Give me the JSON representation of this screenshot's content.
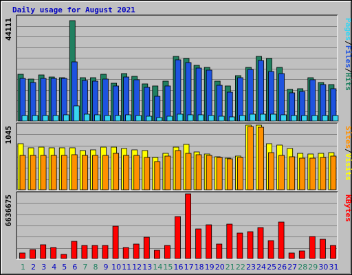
{
  "chart_data": {
    "title": "Daily usage for August 2021",
    "type": "bar",
    "days": [
      1,
      2,
      3,
      4,
      5,
      6,
      7,
      8,
      9,
      10,
      11,
      12,
      13,
      14,
      15,
      16,
      17,
      18,
      19,
      20,
      21,
      22,
      23,
      24,
      25,
      26,
      27,
      28,
      29,
      30,
      31
    ],
    "weekend_days": [
      1,
      7,
      8,
      14,
      15,
      21,
      22,
      28,
      29
    ],
    "panels": [
      {
        "id": "top",
        "ymax_label": "44111",
        "ymax": 44111,
        "series": [
          {
            "name": "Hits",
            "color": "#208060",
            "values": [
              19800,
              17900,
              19500,
              18700,
              18300,
              42700,
              18400,
              18300,
              19800,
              16200,
              20200,
              18900,
              15800,
              14800,
              16800,
              27500,
              26600,
              23800,
              22900,
              16900,
              14800,
              19400,
              22900,
              27400,
              26500,
              22700,
              13300,
              13600,
              18300,
              16300,
              15600
            ]
          },
          {
            "name": "Files",
            "color": "#1e53e0",
            "values": [
              18100,
              16400,
              18200,
              18100,
              18100,
              25000,
              17300,
              17000,
              17900,
              14900,
              18800,
              17500,
              14300,
              10500,
              15000,
              26000,
              24800,
              22600,
              21500,
              15100,
              12200,
              18400,
              21900,
              25600,
              20900,
              20300,
              11900,
              12700,
              17600,
              15500,
              13700
            ]
          },
          {
            "name": "Pages",
            "color": "#38d4f0",
            "values": [
              2400,
              2400,
              2300,
              2200,
              2600,
              6300,
              2900,
              2700,
              2300,
              2300,
              2600,
              2200,
              1900,
              1600,
              2100,
              3000,
              2700,
              2700,
              2200,
              1900,
              1700,
              2200,
              3000,
              2900,
              2800,
              2500,
              2200,
              2400,
              2300,
              2200,
              2200
            ]
          }
        ],
        "legend": [
          "Pages",
          "/",
          "Files",
          "/",
          "Hits"
        ]
      },
      {
        "id": "middle",
        "ymax_label": "1045",
        "ymax": 1045,
        "series": [
          {
            "name": "Visits",
            "color": "#ffff00",
            "values": [
              740,
              675,
              690,
              680,
              680,
              680,
              630,
              640,
              690,
              690,
              665,
              640,
              630,
              525,
              590,
              690,
              735,
              615,
              575,
              535,
              515,
              550,
              1045,
              1045,
              745,
              720,
              665,
              590,
              575,
              590,
              600
            ]
          },
          {
            "name": "Sites",
            "color": "#ff9000",
            "values": [
              555,
              560,
              555,
              555,
              560,
              570,
              555,
              560,
              560,
              590,
              555,
              555,
              520,
              460,
              545,
              630,
              590,
              565,
              555,
              520,
              505,
              525,
              1025,
              1010,
              595,
              555,
              535,
              510,
              515,
              520,
              545
            ]
          }
        ],
        "legend": [
          "Sites",
          "/",
          "Visits"
        ]
      },
      {
        "id": "bottom",
        "ymax_label": "6636675",
        "ymax": 6636675,
        "series": [
          {
            "name": "KBytes",
            "color": "#ff0000",
            "values": [
              600000,
              900000,
              1430000,
              1130000,
              420000,
              1760000,
              1360000,
              1360000,
              1320000,
              3300000,
              1110000,
              1510000,
              2170000,
              870000,
              1340000,
              4290000,
              6636675,
              3050000,
              3450000,
              1470000,
              3500000,
              2630000,
              2720000,
              3170000,
              1860000,
              3710000,
              600000,
              790000,
              2290000,
              2000000,
              1340000
            ]
          }
        ],
        "legend": [
          "KBytes"
        ]
      }
    ],
    "colors": {
      "background": "#c0c0c0",
      "plot_background": "#c0c0c0",
      "grid": "#808080",
      "title": "#0000c0",
      "day_weekday": "#0000c0",
      "day_weekend": "#208060"
    }
  }
}
